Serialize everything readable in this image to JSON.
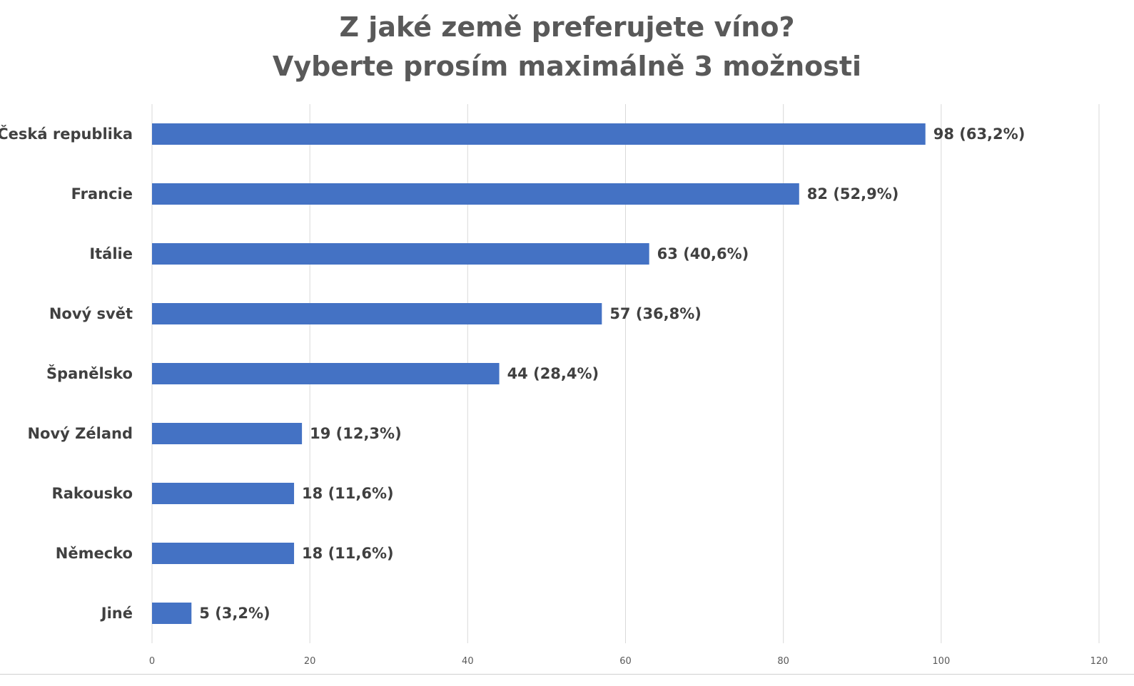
{
  "chart_data": {
    "type": "bar",
    "orientation": "horizontal",
    "title": "Z jaké země preferujete víno?",
    "subtitle": "Vyberte prosím maximálně 3 možnosti",
    "categories": [
      "Česká republika",
      "Francie",
      "Itálie",
      "Nový svět",
      "Španělsko",
      "Nový Zéland",
      "Rakousko",
      "Německo",
      "Jiné"
    ],
    "values": [
      98,
      82,
      63,
      57,
      44,
      19,
      18,
      18,
      5
    ],
    "data_labels": [
      "98 (63,2%)",
      "82 (52,9%)",
      "63 (40,6%)",
      "57 (36,8%)",
      "44 (28,4%)",
      "19 (12,3%)",
      "18 (11,6%)",
      "18 (11,6%)",
      "5 (3,2%)"
    ],
    "xlim": [
      0,
      120
    ],
    "xticks": [
      0,
      20,
      40,
      60,
      80,
      100,
      120
    ],
    "xtick_labels": [
      "0",
      "20",
      "40",
      "60",
      "80",
      "100",
      "120"
    ],
    "grid": "vertical",
    "legend": "none",
    "bar_color": "#4472C4",
    "grid_color": "#D9D9D9"
  }
}
